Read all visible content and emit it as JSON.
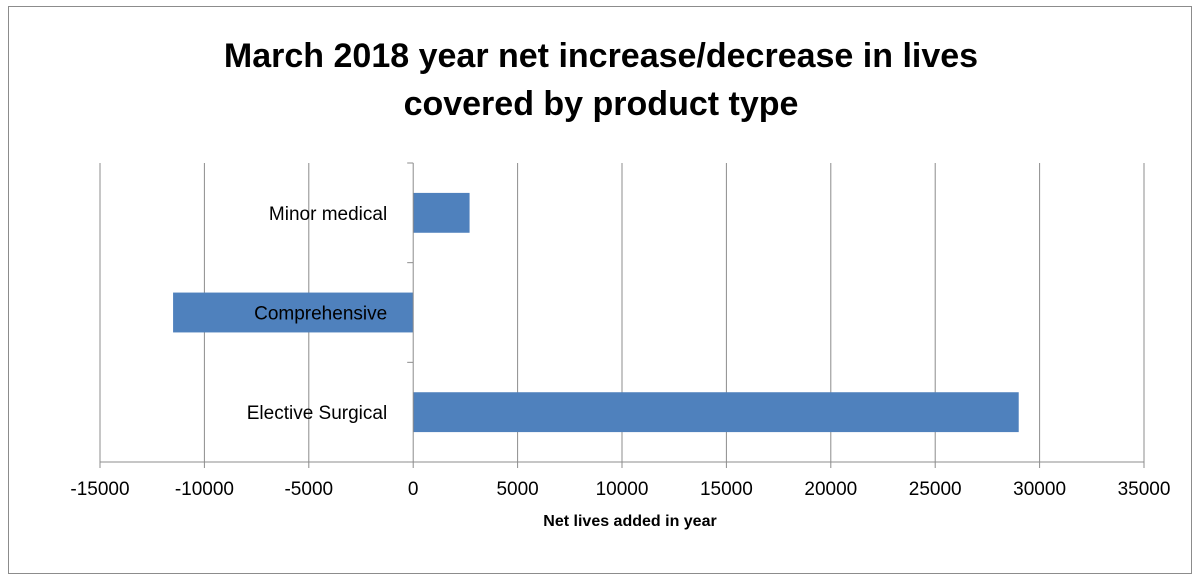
{
  "chart_data": {
    "type": "bar",
    "orientation": "horizontal",
    "title_lines": [
      "March 2018 year net increase/decrease in lives",
      "covered by product type"
    ],
    "xlabel": "Net lives added in year",
    "ylabel": "",
    "categories": [
      "Elective Surgical",
      "Comprehensive",
      "Minor medical"
    ],
    "values": [
      29000,
      -11500,
      2700
    ],
    "xlim": [
      -15000,
      35000
    ],
    "xticks": [
      "-15000",
      "-10000",
      "-5000",
      "0",
      "5000",
      "10000",
      "15000",
      "20000",
      "25000",
      "30000",
      "35000"
    ],
    "grid": "vertical",
    "legend": "none",
    "bar_color": "#4f81bd"
  }
}
